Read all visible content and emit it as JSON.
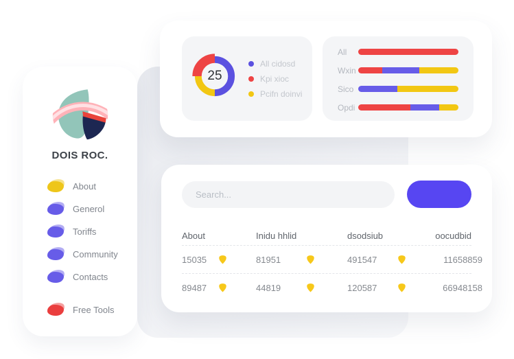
{
  "colors": {
    "primary_purple": "#5b51e0",
    "menu_purple": "#675ce8",
    "button_blue": "#5746f2",
    "red": "#ee4444",
    "yellow": "#f2c713",
    "badge_yellow": "#f7c81a",
    "panel_bg": "#edeff3",
    "subcard_bg": "#f4f5f7",
    "logo_teal": "#92c5b9",
    "logo_navy": "#1d2752",
    "logo_red": "#e9443c",
    "logo_pink": "#ffb2b8",
    "logo_pink_light": "#ffe1e4"
  },
  "sidebar": {
    "title": "DOIS ROC.",
    "items": [
      {
        "label": "About",
        "color": "yellow"
      },
      {
        "label": "Generol",
        "color": "purple"
      },
      {
        "label": "Toriffs",
        "color": "purple"
      },
      {
        "label": "Community",
        "color": "purple"
      },
      {
        "label": "Contacts",
        "color": "purple"
      },
      {
        "label": "Free Tools",
        "color": "red"
      }
    ]
  },
  "search": {
    "placeholder": "Search..."
  },
  "table": {
    "columns": [
      "About",
      "Inidu hhlid",
      "dsodsiub",
      "oocudbid"
    ],
    "rows": [
      [
        "15035",
        "81951",
        "491547",
        "11658859"
      ],
      [
        "89487",
        "44819",
        "120587",
        "66948158"
      ]
    ],
    "badge_columns": [
      0,
      1,
      2
    ]
  },
  "chart_data": [
    {
      "type": "pie",
      "subtype": "donut",
      "center_value": "25",
      "slices": [
        {
          "label": "All cidosd",
          "value": 50,
          "color": "#5b51e0"
        },
        {
          "label": "Kpi xioc",
          "value": 25,
          "color": "#ee4444",
          "emphasis": true
        },
        {
          "label": "Pcifn doinvi",
          "value": 25,
          "color": "#f2c713"
        }
      ],
      "draw_order": [
        0,
        2,
        1
      ],
      "start_angle_deg": 0,
      "legend_position": "right"
    },
    {
      "type": "bar",
      "orientation": "horizontal",
      "stacked": true,
      "unit": "percent",
      "categories": [
        "All",
        "Wxin",
        "Sico",
        "Opdi"
      ],
      "series": [
        {
          "name": "Kpi xioc",
          "color": "#ee4444",
          "values": [
            100,
            24,
            0,
            52
          ]
        },
        {
          "name": "All cidosd",
          "color": "#675ce8",
          "values": [
            0,
            37,
            39,
            29
          ]
        },
        {
          "name": "Pcifn doinvi",
          "color": "#f2c713",
          "values": [
            0,
            39,
            61,
            19
          ]
        }
      ]
    }
  ]
}
